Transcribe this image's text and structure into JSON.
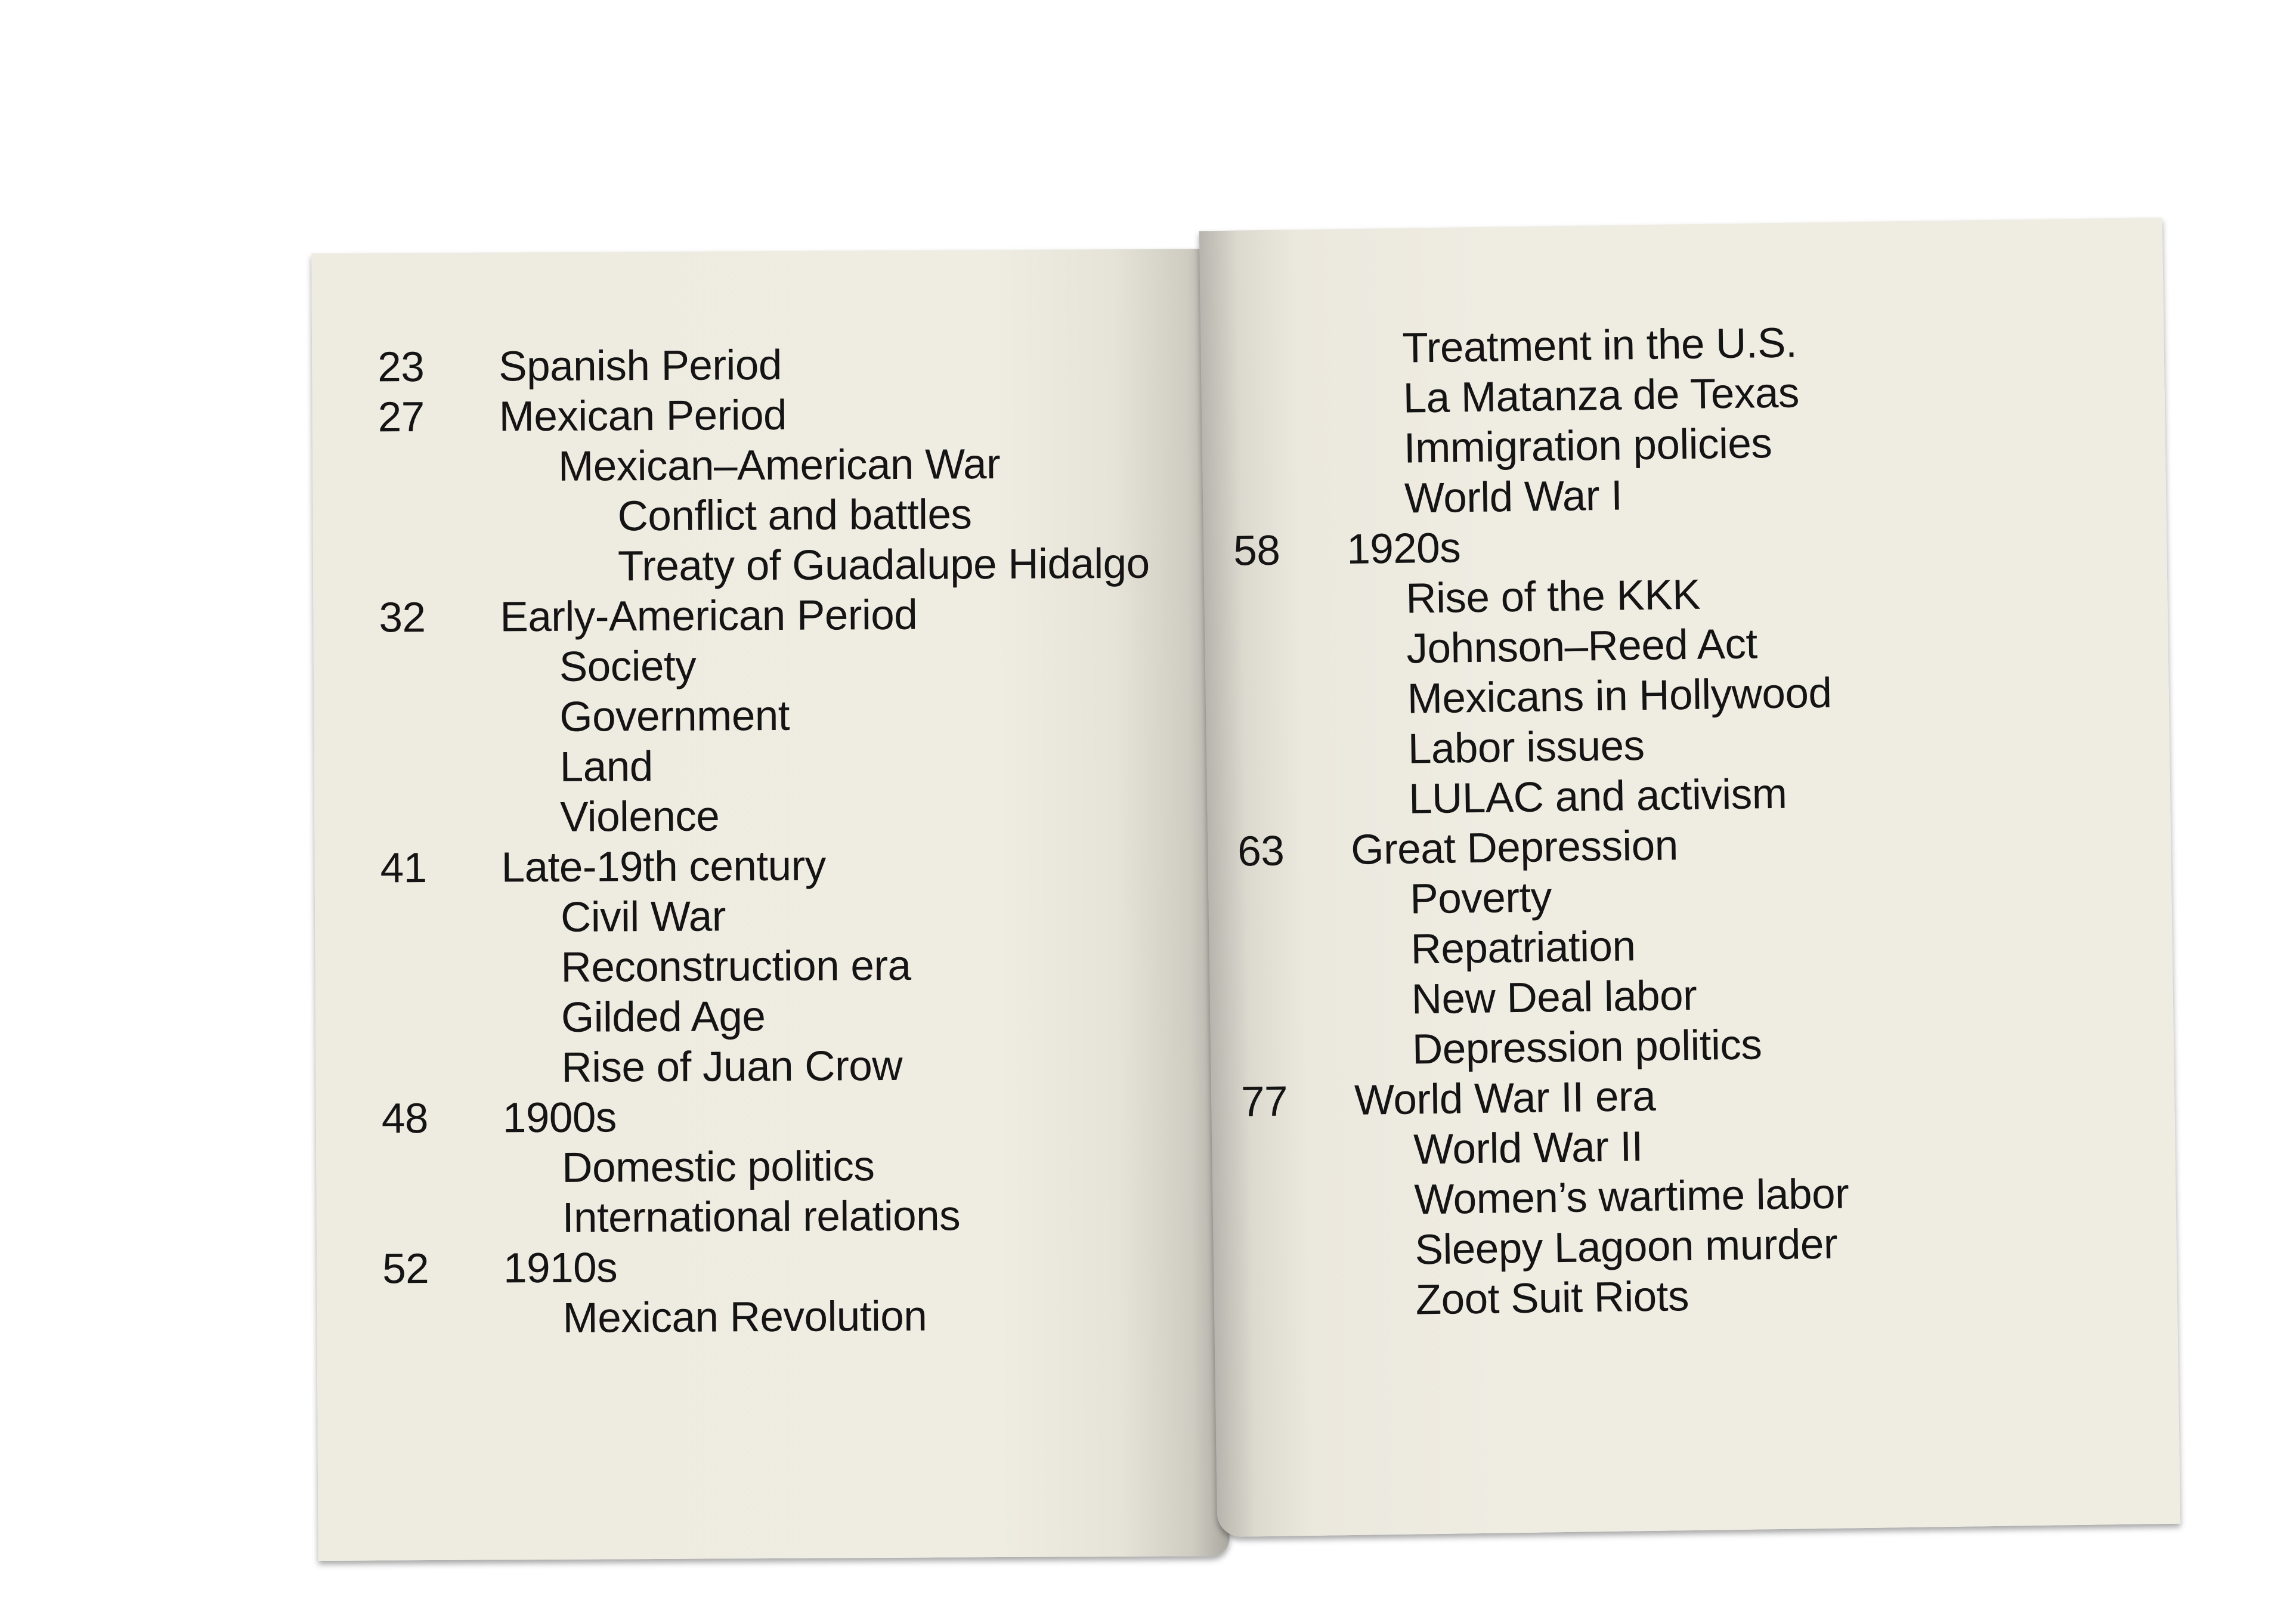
{
  "left_page": {
    "entries": [
      {
        "page": "23",
        "title": "Spanish Period",
        "level": 0
      },
      {
        "page": "27",
        "title": "Mexican Period",
        "level": 0
      },
      {
        "page": "",
        "title": "Mexican–American War",
        "level": 1
      },
      {
        "page": "",
        "title": "Conflict and battles",
        "level": 2
      },
      {
        "page": "",
        "title": "Treaty of Guadalupe Hidalgo",
        "level": 2
      },
      {
        "page": "32",
        "title": "Early-American Period",
        "level": 0
      },
      {
        "page": "",
        "title": "Society",
        "level": 1
      },
      {
        "page": "",
        "title": "Government",
        "level": 1
      },
      {
        "page": "",
        "title": "Land",
        "level": 1
      },
      {
        "page": "",
        "title": "Violence",
        "level": 1
      },
      {
        "page": "41",
        "title": "Late-19th century",
        "level": 0
      },
      {
        "page": "",
        "title": "Civil War",
        "level": 1
      },
      {
        "page": "",
        "title": "Reconstruction era",
        "level": 1
      },
      {
        "page": "",
        "title": "Gilded Age",
        "level": 1
      },
      {
        "page": "",
        "title": "Rise of Juan Crow",
        "level": 1
      },
      {
        "page": "48",
        "title": "1900s",
        "level": 0
      },
      {
        "page": "",
        "title": "Domestic politics",
        "level": 1
      },
      {
        "page": "",
        "title": "International relations",
        "level": 1
      },
      {
        "page": "52",
        "title": "1910s",
        "level": 0
      },
      {
        "page": "",
        "title": "Mexican Revolution",
        "level": 1
      }
    ]
  },
  "right_page": {
    "entries": [
      {
        "page": "",
        "title": "Treatment in the U.S.",
        "level": 1
      },
      {
        "page": "",
        "title": "La Matanza de Texas",
        "level": 1
      },
      {
        "page": "",
        "title": "Immigration policies",
        "level": 1
      },
      {
        "page": "",
        "title": "World War I",
        "level": 1
      },
      {
        "page": "58",
        "title": "1920s",
        "level": 0
      },
      {
        "page": "",
        "title": "Rise of the KKK",
        "level": 1
      },
      {
        "page": "",
        "title": "Johnson–Reed Act",
        "level": 1
      },
      {
        "page": "",
        "title": "Mexicans in Hollywood",
        "level": 1
      },
      {
        "page": "",
        "title": "Labor issues",
        "level": 1
      },
      {
        "page": "",
        "title": "LULAC and activism",
        "level": 1
      },
      {
        "page": "63",
        "title": "Great Depression",
        "level": 0
      },
      {
        "page": "",
        "title": "Poverty",
        "level": 1
      },
      {
        "page": "",
        "title": "Repatriation",
        "level": 1
      },
      {
        "page": "",
        "title": "New Deal labor",
        "level": 1
      },
      {
        "page": "",
        "title": "Depression politics",
        "level": 1
      },
      {
        "page": "77",
        "title": "World War II era",
        "level": 0
      },
      {
        "page": "",
        "title": "World War II",
        "level": 1
      },
      {
        "page": "",
        "title": "Women’s wartime labor",
        "level": 1
      },
      {
        "page": "",
        "title": "Sleepy Lagoon murder",
        "level": 1
      },
      {
        "page": "",
        "title": "Zoot Suit Riots",
        "level": 1
      }
    ]
  },
  "colors": {
    "paper": "#efece2",
    "ink": "#141414"
  }
}
